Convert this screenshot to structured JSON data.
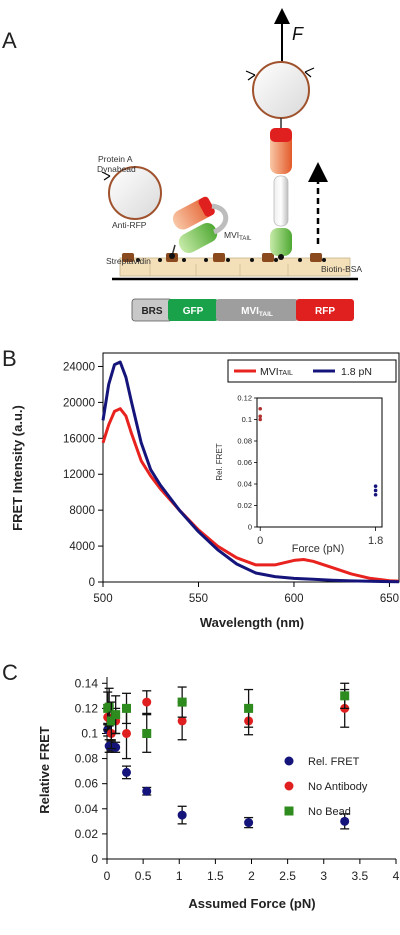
{
  "panelA": {
    "letter": "A",
    "force_label": "F",
    "protein_a_line1": "Protein A",
    "protein_a_line2": "Dynabead",
    "anti_rfp": "Anti-RFP",
    "mvi_tail_main": "MVI",
    "mvi_tail_sub": "TAIL",
    "streptavidin": "Streptavidin",
    "biotin_bsa": "Biotin-BSA",
    "construct": [
      {
        "label": "BRS",
        "sub": "",
        "color": "#c8c8c8",
        "text_color": "#222222"
      },
      {
        "label": "GFP",
        "sub": "",
        "color": "#1aa24a",
        "text_color": "#ffffff"
      },
      {
        "label": "MVI",
        "sub": "TAIL",
        "color": "#9e9e9e",
        "text_color": "#ffffff"
      },
      {
        "label": "RFP",
        "sub": "",
        "color": "#e0201e",
        "text_color": "#ffffff"
      }
    ],
    "colors": {
      "rfp": "#e0201e",
      "rfp_light": "#f6a27a",
      "gfp": "#5fb842",
      "bead": "#a0522d",
      "surface": "#f3dfb8",
      "streptavidin": "#8b4a1e"
    }
  },
  "panelB": {
    "letter": "B",
    "ylabel": "FRET Intensity (a.u.)",
    "xlabel": "Wavelength (nm)",
    "legend": [
      {
        "main": "MVI",
        "sub": "TAIL",
        "color": "#e8231f"
      },
      {
        "main": "1.8 pN",
        "sub": "",
        "color": "#14147a"
      }
    ],
    "inset_ylabel": "Rel. FRET",
    "inset_xlabel": "Force (pN)"
  },
  "panelC": {
    "letter": "C",
    "ylabel": "Relative FRET",
    "xlabel": "Assumed Force (pN)",
    "legend": [
      "Rel. FRET",
      "No Antibody",
      "No Bead"
    ]
  },
  "chart_data": [
    {
      "type": "line",
      "xlabel": "Wavelength (nm)",
      "ylabel": "FRET Intensity (a.u.)",
      "xlim": [
        500,
        655
      ],
      "ylim": [
        0,
        25500
      ],
      "xticks": [
        500,
        550,
        600,
        650
      ],
      "yticks": [
        0,
        4000,
        8000,
        12000,
        16000,
        20000,
        24000
      ],
      "grid": false,
      "legend_position": "top-right",
      "series": [
        {
          "name": "MVITAIL",
          "color": "#e8231f",
          "x": [
            500,
            503,
            506,
            509,
            512,
            515,
            520,
            525,
            530,
            540,
            550,
            560,
            570,
            580,
            590,
            600,
            605,
            610,
            620,
            630,
            640,
            650,
            655
          ],
          "y": [
            15500,
            17500,
            19000,
            19300,
            18500,
            16500,
            13500,
            11800,
            10400,
            8000,
            5800,
            4000,
            2700,
            1900,
            1900,
            2400,
            2500,
            2300,
            1600,
            900,
            400,
            150,
            100
          ]
        },
        {
          "name": "1.8 pN",
          "color": "#14147a",
          "x": [
            500,
            503,
            506,
            509,
            512,
            515,
            520,
            525,
            530,
            540,
            550,
            560,
            570,
            580,
            590,
            600,
            610,
            620,
            630,
            640,
            650,
            655
          ],
          "y": [
            18000,
            22000,
            24200,
            24500,
            22800,
            20000,
            15500,
            12500,
            10800,
            8000,
            5600,
            3600,
            2000,
            1000,
            600,
            400,
            300,
            200,
            120,
            80,
            50,
            30
          ]
        }
      ]
    },
    {
      "type": "scatter",
      "xlabel": "Force (pN)",
      "ylabel": "Rel. FRET",
      "xlim": [
        -0.05,
        1.9
      ],
      "ylim": [
        0,
        0.12
      ],
      "xticks": [
        0,
        1.8
      ],
      "yticks": [
        0,
        0.02,
        0.04,
        0.06,
        0.08,
        0.1,
        0.12
      ],
      "series": [
        {
          "name": "",
          "color": "#b03030",
          "x": [
            0,
            0,
            0
          ],
          "y": [
            0.1,
            0.103,
            0.11
          ]
        },
        {
          "name": "",
          "color": "#14147a",
          "x": [
            1.8,
            1.8,
            1.8
          ],
          "y": [
            0.03,
            0.034,
            0.038
          ]
        }
      ]
    },
    {
      "type": "scatter",
      "xlabel": "Assumed Force (pN)",
      "ylabel": "Relative FRET",
      "xlim": [
        0,
        4
      ],
      "ylim": [
        0,
        0.145
      ],
      "xticks": [
        0,
        0.5,
        1,
        1.5,
        2,
        2.5,
        3,
        3.5,
        4
      ],
      "yticks": [
        0,
        0.02,
        0.04,
        0.06,
        0.08,
        0.1,
        0.12,
        0.14
      ],
      "grid": false,
      "legend_position": "right",
      "series": [
        {
          "name": "Rel. FRET",
          "color": "#14147a",
          "marker": "circle",
          "x": [
            0.01,
            0.03,
            0.06,
            0.12,
            0.27,
            0.55,
            1.04,
            1.96,
            3.29
          ],
          "y": [
            0.103,
            0.09,
            0.09,
            0.089,
            0.069,
            0.054,
            0.035,
            0.029,
            0.03
          ],
          "err": [
            0.005,
            0.005,
            0.004,
            0.004,
            0.005,
            0.003,
            0.007,
            0.004,
            0.006
          ]
        },
        {
          "name": "No Antibody",
          "color": "#e02020",
          "marker": "circle",
          "x": [
            0.01,
            0.03,
            0.06,
            0.12,
            0.27,
            0.55,
            1.04,
            1.96,
            3.29
          ],
          "y": [
            0.113,
            0.112,
            0.1,
            0.11,
            0.1,
            0.125,
            0.11,
            0.11,
            0.12
          ],
          "err": [
            0.01,
            0.01,
            0.012,
            0.01,
            0.02,
            0.009,
            0.015,
            0.011,
            0.015
          ]
        },
        {
          "name": "No Bead",
          "color": "#2e8b1e",
          "marker": "square",
          "x": [
            0.01,
            0.03,
            0.06,
            0.12,
            0.27,
            0.55,
            1.04,
            1.96,
            3.29
          ],
          "y": [
            0.12,
            0.121,
            0.11,
            0.115,
            0.12,
            0.1,
            0.125,
            0.12,
            0.13
          ],
          "err": [
            0.013,
            0.015,
            0.015,
            0.015,
            0.012,
            0.015,
            0.012,
            0.015,
            0.01
          ]
        }
      ]
    }
  ]
}
